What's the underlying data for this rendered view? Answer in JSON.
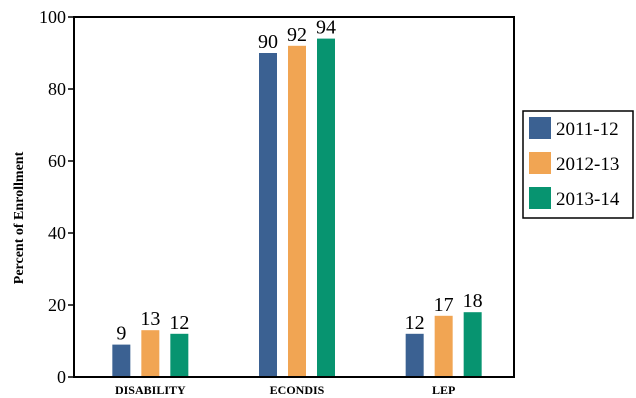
{
  "chart_data": {
    "type": "bar",
    "ylabel": "Percent of Enrollment",
    "ylim": [
      0,
      100
    ],
    "yticks": [
      "0",
      "20",
      "40",
      "60",
      "80",
      "100"
    ],
    "categories": [
      "DISABILITY",
      "ECONDIS",
      "LEP"
    ],
    "series": [
      {
        "name": "2011-12",
        "color": "#3b6192",
        "values": [
          9,
          90,
          12
        ]
      },
      {
        "name": "2012-13",
        "color": "#f1a553",
        "values": [
          13,
          92,
          17
        ]
      },
      {
        "name": "2013-14",
        "color": "#079470",
        "values": [
          12,
          94,
          18
        ]
      }
    ],
    "data_labels": [
      [
        "9",
        "90",
        "12"
      ],
      [
        "13",
        "92",
        "17"
      ],
      [
        "12",
        "94",
        "18"
      ]
    ],
    "legend": "right",
    "grid": false
  }
}
